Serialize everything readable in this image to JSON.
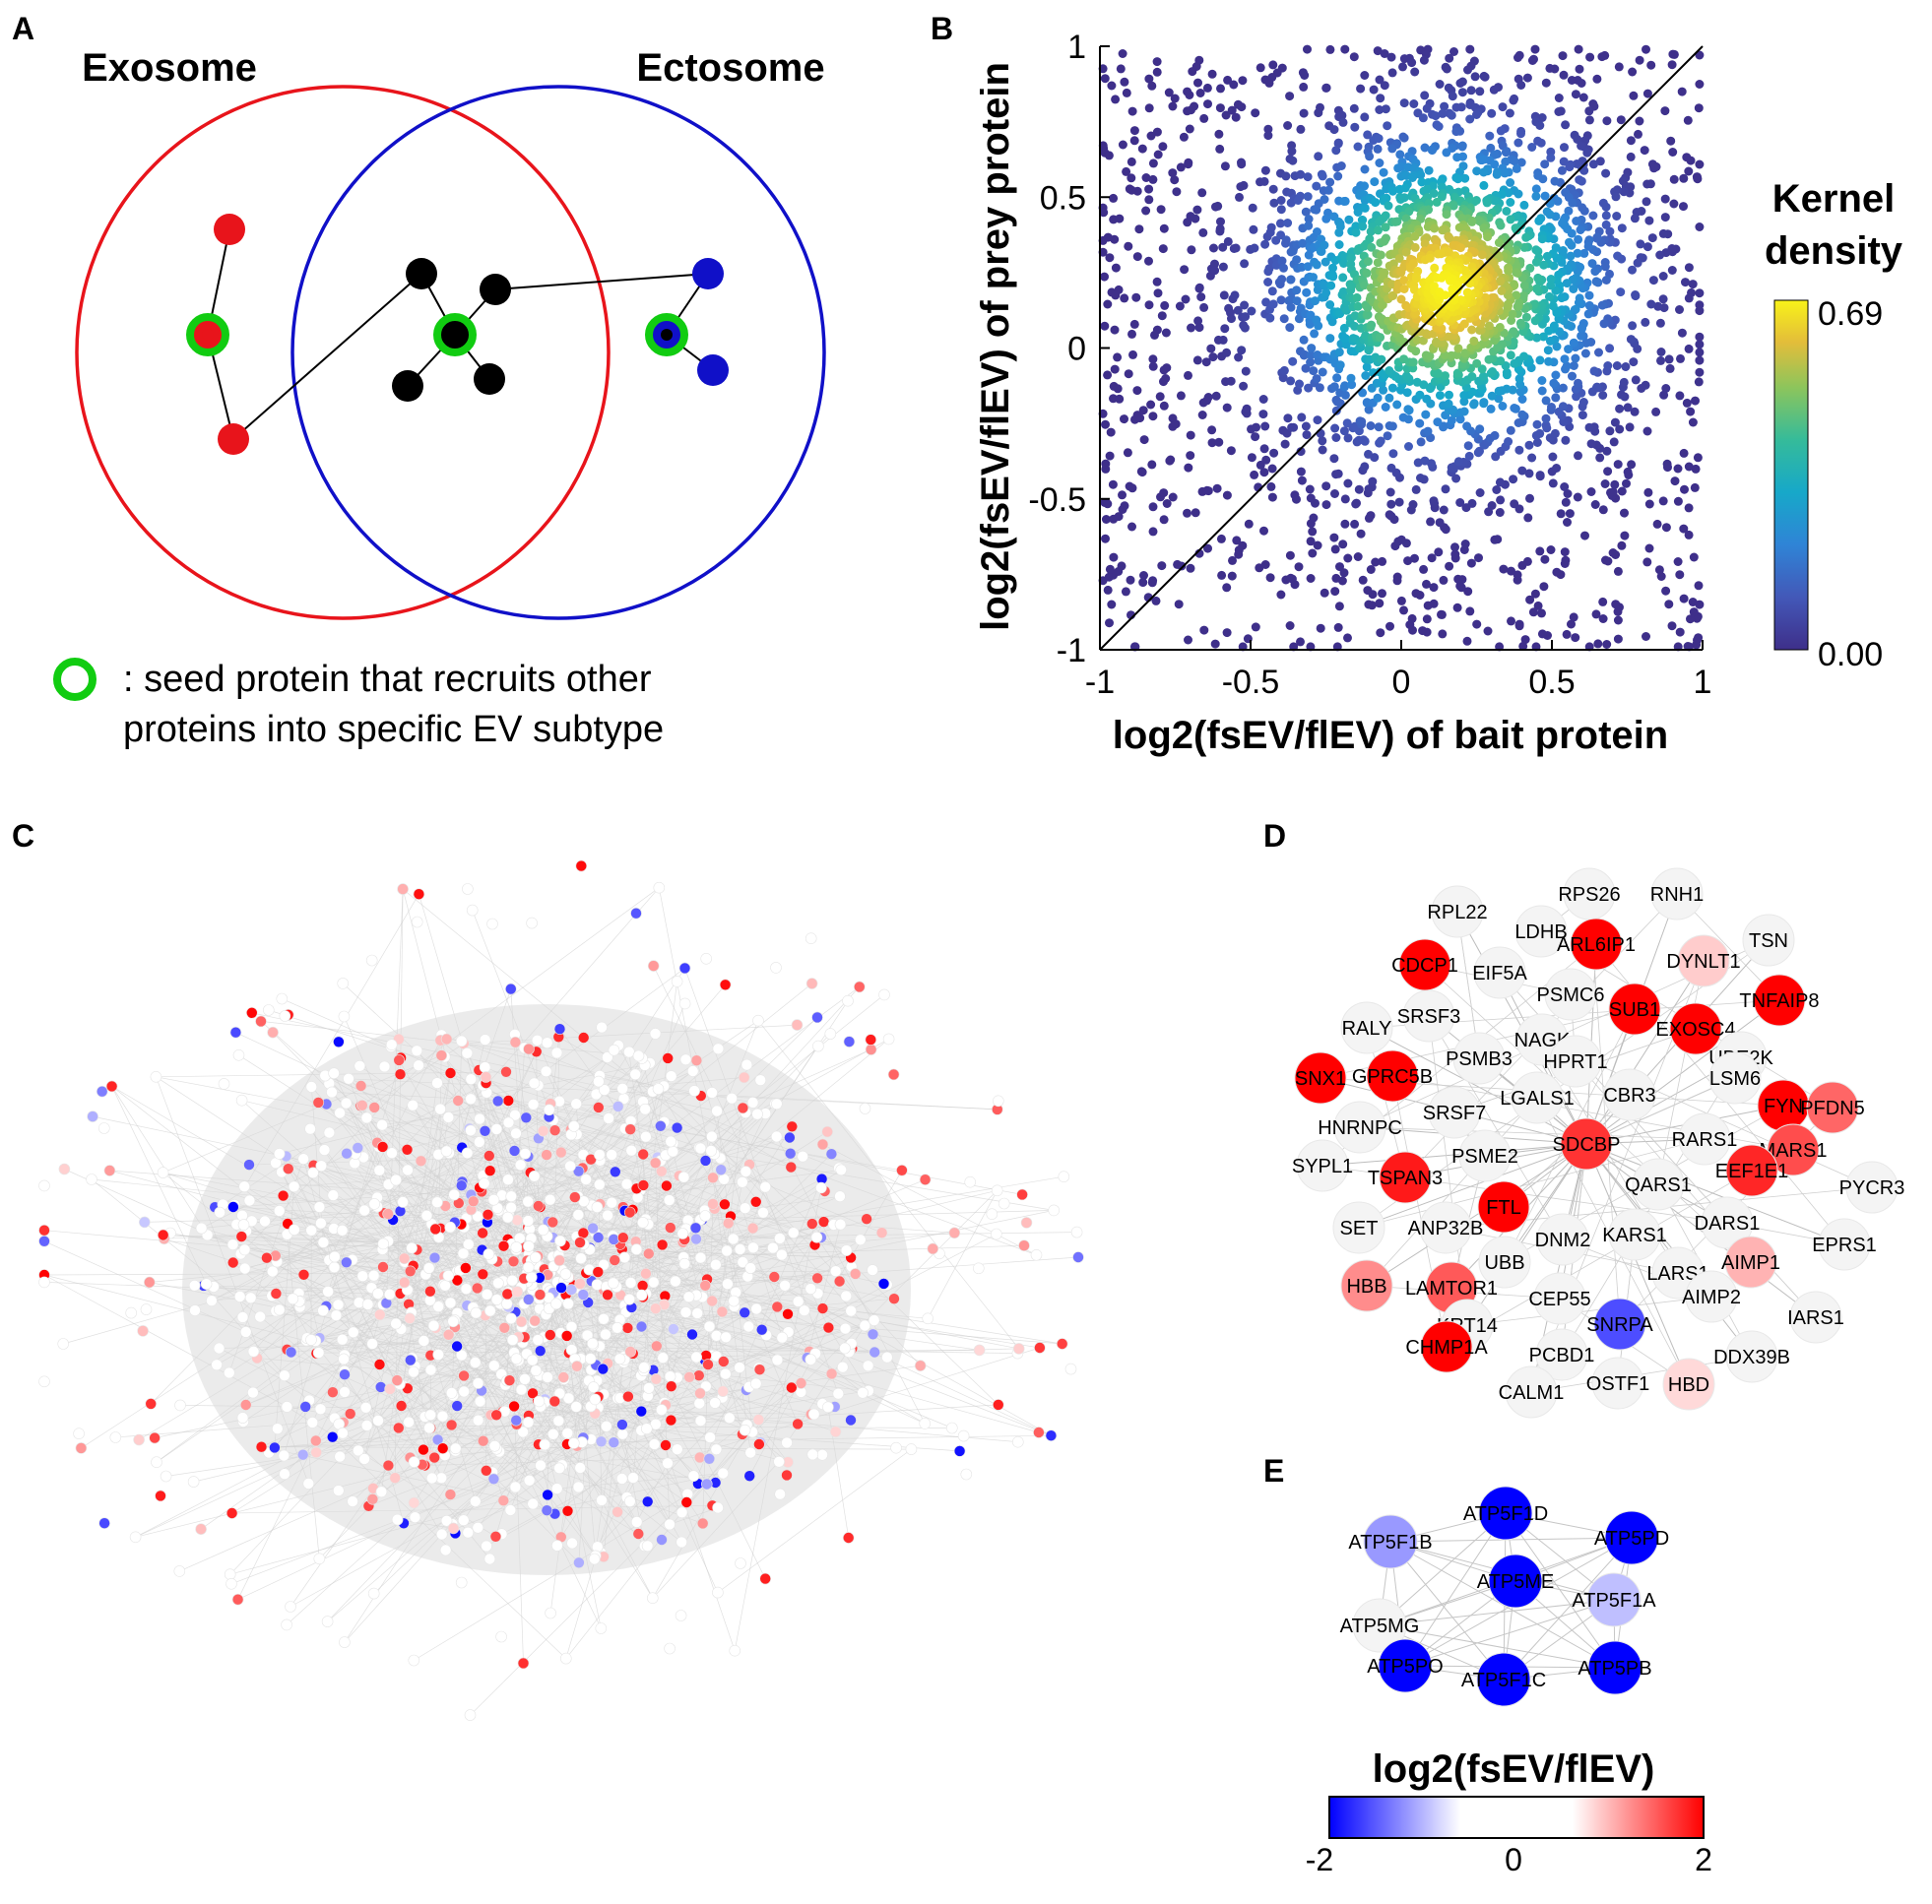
{
  "panels": {
    "a": "A",
    "b": "B",
    "c": "C",
    "d": "D",
    "e": "E"
  },
  "panel_a": {
    "exosome_label": "Exosome",
    "ectosome_label": "Ectosome",
    "legend_line1": ": seed protein that recruits other",
    "legend_line2": "proteins into specific EV subtype",
    "colors": {
      "exosome": "#e8141b",
      "ectosome": "#1010c8",
      "seed": "#11cc11",
      "shared": "#000000"
    }
  },
  "chart_data": {
    "type": "scatter",
    "xlabel": "log2(fsEV/flEV) of bait protein",
    "ylabel": "log2(fsEV/flEV) of prey protein",
    "xlim": [
      -1,
      1
    ],
    "ylim": [
      -1,
      1
    ],
    "xticks": [
      "-1",
      "-0.5",
      "0",
      "0.5",
      "1"
    ],
    "yticks": [
      "-1",
      "-0.5",
      "0",
      "0.5",
      "1"
    ],
    "density_peak": {
      "x": 0.15,
      "y": 0.2
    },
    "diagonal": "y = x",
    "colorbar_title_line1": "Kernel",
    "colorbar_title_line2": "density",
    "colorbar_max": "0.69",
    "colorbar_min": "0.00"
  },
  "panel_d": {
    "nodes": [
      {
        "label": "RPS26",
        "v": 0
      },
      {
        "label": "RNH1",
        "v": 0
      },
      {
        "label": "RPL22",
        "v": 0
      },
      {
        "label": "LDHB",
        "v": 0
      },
      {
        "label": "ARL6IP1",
        "v": 2
      },
      {
        "label": "TSN",
        "v": 0
      },
      {
        "label": "CDCP1",
        "v": 2
      },
      {
        "label": "EIF5A",
        "v": 0
      },
      {
        "label": "DYNLT1",
        "v": 0.4
      },
      {
        "label": "PSMC6",
        "v": 0
      },
      {
        "label": "TNFAIP8",
        "v": 2
      },
      {
        "label": "SUB1",
        "v": 2
      },
      {
        "label": "EXOSC4",
        "v": 2
      },
      {
        "label": "RALY",
        "v": 0
      },
      {
        "label": "SRSF3",
        "v": 0
      },
      {
        "label": "NAGK",
        "v": 0
      },
      {
        "label": "UBE2K",
        "v": 0
      },
      {
        "label": "PSMB3",
        "v": 0
      },
      {
        "label": "HPRT1",
        "v": 0
      },
      {
        "label": "LSM6",
        "v": 0
      },
      {
        "label": "SNX1",
        "v": 2
      },
      {
        "label": "GPRC5B",
        "v": 2
      },
      {
        "label": "CBR3",
        "v": 0
      },
      {
        "label": "FYN",
        "v": 2
      },
      {
        "label": "PFDN5",
        "v": 1.2
      },
      {
        "label": "LGALS1",
        "v": 0
      },
      {
        "label": "HNRNPC",
        "v": 0
      },
      {
        "label": "SRSF7",
        "v": 0
      },
      {
        "label": "SDCBP",
        "v": 1.6
      },
      {
        "label": "RARS1",
        "v": 0
      },
      {
        "label": "MARS1",
        "v": 1.4
      },
      {
        "label": "SYPL1",
        "v": 0
      },
      {
        "label": "PSME2",
        "v": 0
      },
      {
        "label": "EEF1E1",
        "v": 1.7
      },
      {
        "label": "TSPAN3",
        "v": 1.8
      },
      {
        "label": "QARS1",
        "v": 0
      },
      {
        "label": "PYCR3",
        "v": 0
      },
      {
        "label": "FTL",
        "v": 2
      },
      {
        "label": "SET",
        "v": 0
      },
      {
        "label": "ANP32B",
        "v": 0
      },
      {
        "label": "DARS1",
        "v": 0
      },
      {
        "label": "DNM2",
        "v": 0
      },
      {
        "label": "KARS1",
        "v": 0
      },
      {
        "label": "EPRS1",
        "v": 0
      },
      {
        "label": "UBB",
        "v": 0
      },
      {
        "label": "AIMP1",
        "v": 0.6
      },
      {
        "label": "HBB",
        "v": 0.9
      },
      {
        "label": "LAMTOR1",
        "v": 1.3
      },
      {
        "label": "LARS1",
        "v": 0
      },
      {
        "label": "CEP55",
        "v": 0
      },
      {
        "label": "AIMP2",
        "v": 0
      },
      {
        "label": "SNRPA",
        "v": -1.4
      },
      {
        "label": "IARS1",
        "v": 0
      },
      {
        "label": "KRT14",
        "v": 0
      },
      {
        "label": "CHMP1A",
        "v": 2
      },
      {
        "label": "PCBD1",
        "v": 0
      },
      {
        "label": "DDX39B",
        "v": 0
      },
      {
        "label": "OSTF1",
        "v": 0
      },
      {
        "label": "HBD",
        "v": 0.3
      },
      {
        "label": "CALM1",
        "v": 0
      }
    ]
  },
  "panel_e": {
    "nodes": [
      {
        "label": "ATP5F1D",
        "v": -2
      },
      {
        "label": "ATP5F1B",
        "v": -0.8
      },
      {
        "label": "ATP5PD",
        "v": -2
      },
      {
        "label": "ATP5ME",
        "v": -2
      },
      {
        "label": "ATP5F1A",
        "v": -0.5
      },
      {
        "label": "ATP5MG",
        "v": 0
      },
      {
        "label": "ATP5PO",
        "v": -2
      },
      {
        "label": "ATP5F1C",
        "v": -2
      },
      {
        "label": "ATP5PB",
        "v": -2
      }
    ]
  },
  "colorbar_e": {
    "title": "log2(fsEV/flEV)",
    "min_label": "-2",
    "mid_label": "0",
    "max_label": "2"
  }
}
